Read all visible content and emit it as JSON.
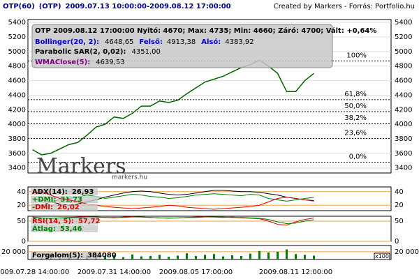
{
  "header": {
    "symbol": "OTP(60)",
    "code": "(OTP)",
    "range": "2009.07.13 10:00:00-2009.08.12 17:00:00",
    "credit": "Created by Markers - Forrás: Portfolio.hu"
  },
  "watermark": {
    "logo": "Markers",
    "site": "markers.hu"
  },
  "info": {
    "quote": "OTP 2009.08.12 17:00:00 Nyitó: 4670; Max: 4735; Min: 4660; Záró: 4700; Vált: +0,64%",
    "bollinger": "Bollinger(20, 2):",
    "bollinger_value": "4648,65",
    "upper": "Felső:",
    "upper_value": "4913,38",
    "lower": "Alsó:",
    "lower_value": "4383,92",
    "sar": "Parabolic SAR(2, 0,02):",
    "sar_value": "4351,00",
    "wma": "WMAClose(5):",
    "wma_value": "4639,53"
  },
  "chart_data": [
    {
      "type": "line",
      "color": "#006400",
      "categories": [
        "2009.07.28 14:00:00",
        null,
        null,
        null,
        null,
        null,
        null,
        null,
        null,
        "2009.07.31 14:00:00",
        null,
        null,
        null,
        null,
        null,
        null,
        null,
        null,
        "2009.08.05 17:00:00",
        null,
        null,
        null,
        null,
        null,
        null,
        null,
        null,
        null,
        null,
        "2009.08.11 12:00:00",
        null,
        null
      ],
      "values": [
        3650,
        3580,
        3600,
        3660,
        3720,
        3750,
        3850,
        3960,
        4000,
        4100,
        4080,
        4150,
        4250,
        4250,
        4320,
        4300,
        4330,
        4420,
        4500,
        4580,
        4620,
        4660,
        4720,
        4780,
        4820,
        4880,
        4800,
        4700,
        4450,
        4450,
        4600,
        4700
      ],
      "ylim": [
        3330,
        5440
      ],
      "yticks": [
        3400,
        3600,
        3800,
        4000,
        4200,
        4400,
        4600,
        4800,
        5000,
        5200,
        5400
      ],
      "grid": true,
      "levels": [
        {
          "value": 4871,
          "label": "100%"
        },
        {
          "value": 4338,
          "label": "61,8%"
        },
        {
          "value": 4174,
          "label": "50,0%"
        },
        {
          "value": 4009,
          "label": "38,2%"
        },
        {
          "value": 3806,
          "label": "23,6%"
        },
        {
          "value": 3477,
          "label": "0,0%"
        }
      ]
    },
    {
      "type": "line",
      "ylim": [
        12,
        47
      ],
      "yticks": [
        20,
        40
      ],
      "series": [
        {
          "name": "ADX(14):",
          "readout": "26,93",
          "color": "#000000",
          "values": [
            30,
            28,
            25,
            22,
            20,
            22,
            25,
            28,
            32,
            35,
            38,
            40,
            41,
            40,
            38,
            36,
            35,
            36,
            38,
            40,
            42,
            42,
            41,
            40,
            40,
            39,
            37,
            35,
            32,
            30,
            28,
            26.93
          ]
        },
        {
          "name": "+DMI:",
          "readout": "31,73",
          "color": "#008000",
          "values": [
            22,
            20,
            25,
            28,
            30,
            32,
            35,
            33,
            30,
            32,
            34,
            36,
            35,
            33,
            32,
            30,
            31,
            33,
            35,
            36,
            37,
            36,
            35,
            34,
            36,
            35,
            30,
            28,
            26,
            28,
            30,
            31.73
          ]
        },
        {
          "name": "-DMI:",
          "readout": "26,02",
          "color": "#e00000",
          "values": [
            38,
            40,
            35,
            30,
            28,
            25,
            22,
            20,
            18,
            17,
            16,
            15,
            16,
            17,
            18,
            20,
            19,
            17,
            16,
            15,
            14,
            15,
            16,
            17,
            18,
            20,
            25,
            30,
            32,
            30,
            28,
            26.02
          ]
        }
      ]
    },
    {
      "type": "line",
      "ylim": [
        0,
        62
      ],
      "yticks": [
        0,
        50
      ],
      "series": [
        {
          "name": "RSI(14, 5):",
          "readout": "57,72",
          "color": "#e00000",
          "values": [
            60,
            58,
            57,
            58,
            59,
            60,
            61,
            60,
            59,
            58,
            60,
            61,
            60,
            59,
            58,
            57,
            58,
            59,
            60,
            61,
            60,
            59,
            60,
            58,
            57,
            56,
            50,
            42,
            40,
            48,
            54,
            57.72
          ]
        },
        {
          "name": "Átlag:",
          "readout": "53,46",
          "color": "#008000",
          "values": [
            59,
            58,
            57,
            58,
            58,
            59,
            60,
            60,
            59,
            59,
            59,
            60,
            60,
            59,
            58,
            58,
            58,
            59,
            59,
            60,
            60,
            60,
            59,
            59,
            58,
            57,
            54,
            48,
            44,
            45,
            50,
            53.46
          ]
        }
      ]
    },
    {
      "type": "bar",
      "color": "#008000",
      "ylim": [
        0,
        36000
      ],
      "yticks": [
        {
          "value": 20000,
          "label": "20 000"
        }
      ],
      "unit": "x100",
      "name": "Forgalom(5):",
      "readout": "384080",
      "values": [
        9000,
        6000,
        12000,
        8000,
        15000,
        7000,
        10000,
        14000,
        9000,
        11000,
        6000,
        13000,
        8000,
        9000,
        12000,
        7000,
        10000,
        16000,
        9000,
        12000,
        14000,
        8000,
        11000,
        9000,
        15000,
        22000,
        18000,
        20000,
        26000,
        14000,
        12000,
        10000
      ]
    }
  ]
}
